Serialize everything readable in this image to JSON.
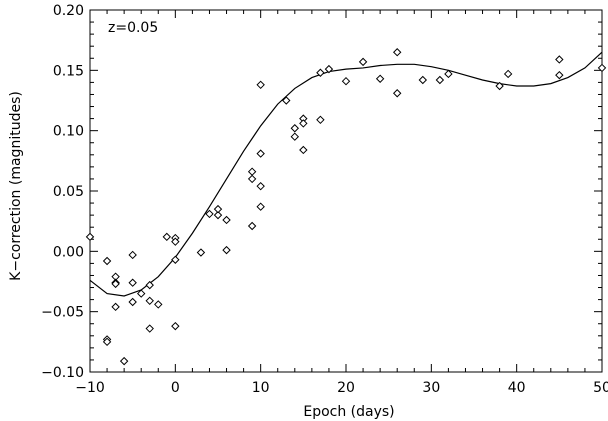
{
  "chart_data": {
    "type": "scatter",
    "title": "",
    "xlabel": "Epoch (days)",
    "ylabel": "K−correction (magnitudes)",
    "annotation": "z=0.05",
    "xlim": [
      -10,
      50
    ],
    "ylim": [
      -0.1,
      0.2
    ],
    "xticks": [
      -10,
      0,
      10,
      20,
      30,
      40,
      50
    ],
    "xtick_labels": [
      "−10",
      "0",
      "10",
      "20",
      "30",
      "40",
      "50"
    ],
    "yticks": [
      -0.1,
      -0.05,
      0.0,
      0.05,
      0.1,
      0.15,
      0.2
    ],
    "ytick_labels": [
      "−0.10",
      "−0.05",
      "0.00",
      "0.05",
      "0.10",
      "0.15",
      "0.20"
    ],
    "grid": false,
    "legend": "none",
    "series": [
      {
        "marker": "diamond",
        "points": [
          [
            -10,
            0.012
          ],
          [
            -8,
            -0.008
          ],
          [
            -8,
            -0.073
          ],
          [
            -8,
            -0.075
          ],
          [
            -7,
            -0.021
          ],
          [
            -7,
            -0.026
          ],
          [
            -7,
            -0.027
          ],
          [
            -7,
            -0.046
          ],
          [
            -6,
            -0.091
          ],
          [
            -5,
            -0.003
          ],
          [
            -5,
            -0.026
          ],
          [
            -5,
            -0.042
          ],
          [
            -4,
            -0.035
          ],
          [
            -3,
            -0.028
          ],
          [
            -3,
            -0.041
          ],
          [
            -3,
            -0.064
          ],
          [
            -2,
            -0.044
          ],
          [
            -1,
            0.012
          ],
          [
            0,
            0.011
          ],
          [
            0,
            0.008
          ],
          [
            0,
            -0.007
          ],
          [
            0,
            -0.062
          ],
          [
            3,
            -0.001
          ],
          [
            4,
            0.031
          ],
          [
            5,
            0.03
          ],
          [
            5,
            0.035
          ],
          [
            6,
            0.026
          ],
          [
            6,
            0.001
          ],
          [
            9,
            0.066
          ],
          [
            9,
            0.06
          ],
          [
            9,
            0.021
          ],
          [
            10,
            0.138
          ],
          [
            10,
            0.081
          ],
          [
            10,
            0.054
          ],
          [
            10,
            0.037
          ],
          [
            13,
            0.125
          ],
          [
            14,
            0.102
          ],
          [
            14,
            0.095
          ],
          [
            15,
            0.11
          ],
          [
            15,
            0.106
          ],
          [
            15,
            0.084
          ],
          [
            17,
            0.148
          ],
          [
            17,
            0.109
          ],
          [
            18,
            0.151
          ],
          [
            20,
            0.141
          ],
          [
            22,
            0.157
          ],
          [
            24,
            0.143
          ],
          [
            26,
            0.165
          ],
          [
            26,
            0.131
          ],
          [
            29,
            0.142
          ],
          [
            31,
            0.142
          ],
          [
            32,
            0.147
          ],
          [
            38,
            0.137
          ],
          [
            39,
            0.147
          ],
          [
            45,
            0.159
          ],
          [
            45,
            0.146
          ],
          [
            50,
            0.152
          ]
        ]
      },
      {
        "style": "solid-line",
        "points": [
          [
            -10,
            -0.024
          ],
          [
            -8,
            -0.035
          ],
          [
            -6,
            -0.037
          ],
          [
            -4,
            -0.032
          ],
          [
            -2,
            -0.021
          ],
          [
            0,
            -0.005
          ],
          [
            2,
            0.015
          ],
          [
            4,
            0.037
          ],
          [
            6,
            0.06
          ],
          [
            8,
            0.083
          ],
          [
            10,
            0.104
          ],
          [
            12,
            0.122
          ],
          [
            14,
            0.135
          ],
          [
            16,
            0.144
          ],
          [
            18,
            0.149
          ],
          [
            20,
            0.151
          ],
          [
            22,
            0.152
          ],
          [
            24,
            0.154
          ],
          [
            26,
            0.155
          ],
          [
            28,
            0.155
          ],
          [
            30,
            0.153
          ],
          [
            32,
            0.15
          ],
          [
            34,
            0.146
          ],
          [
            36,
            0.142
          ],
          [
            38,
            0.139
          ],
          [
            40,
            0.137
          ],
          [
            42,
            0.137
          ],
          [
            44,
            0.139
          ],
          [
            46,
            0.144
          ],
          [
            48,
            0.152
          ],
          [
            50,
            0.165
          ]
        ]
      }
    ]
  }
}
